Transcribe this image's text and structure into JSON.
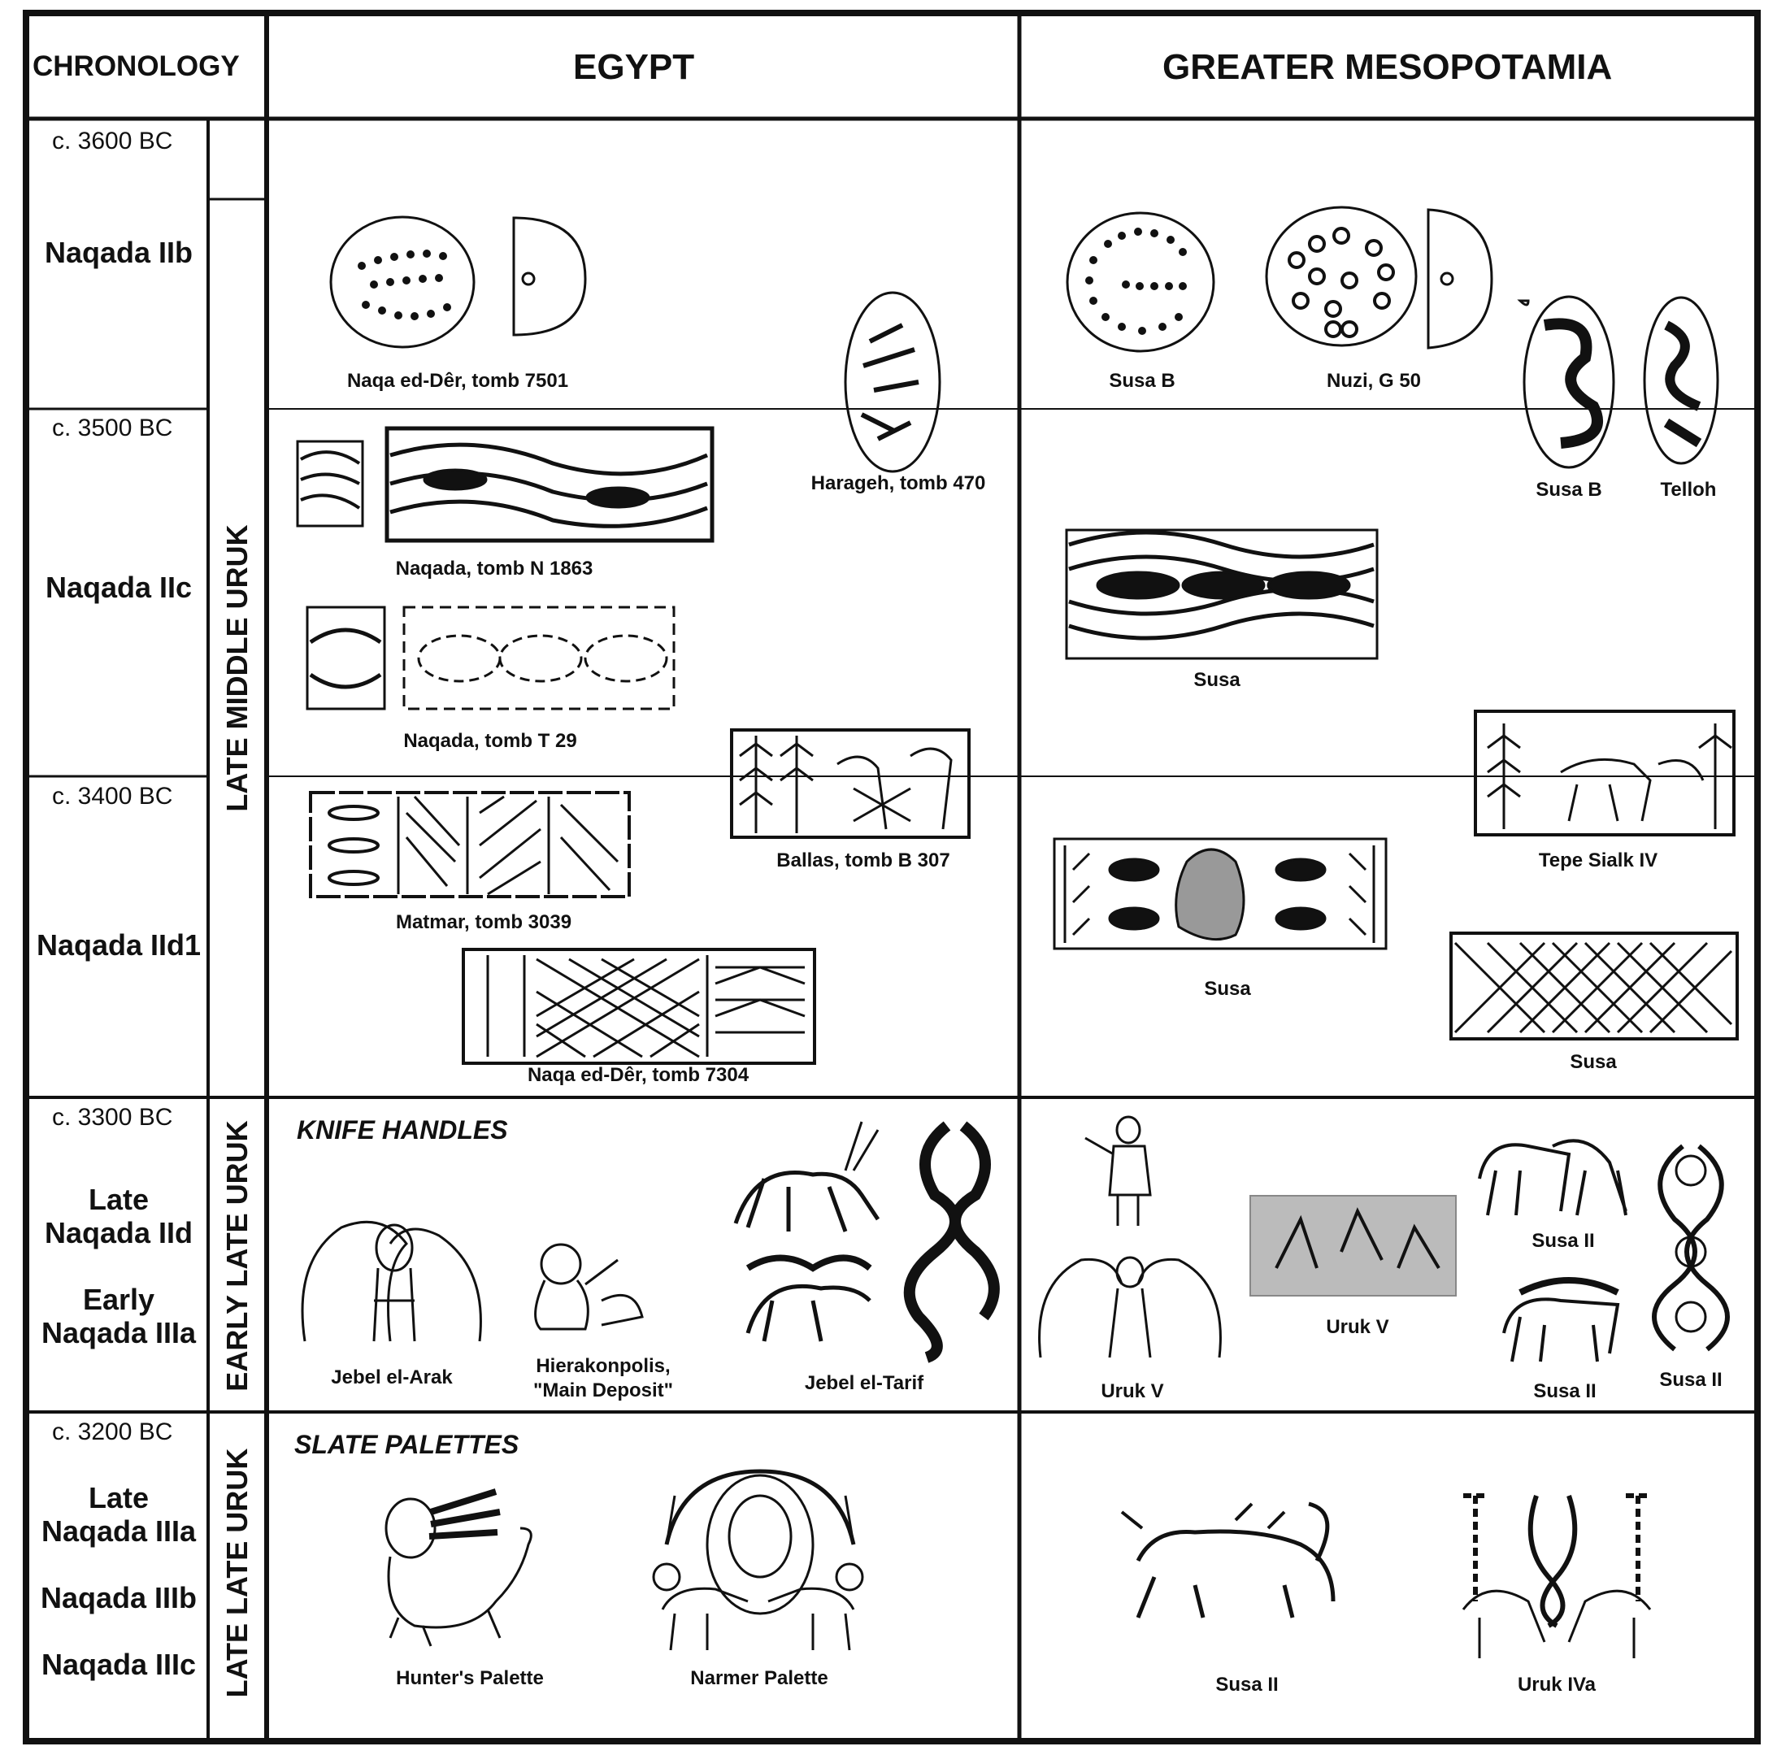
{
  "headers": {
    "chronology": "CHRONOLOGY",
    "egypt": "EGYPT",
    "mesopotamia": "GREATER MESOPOTAMIA"
  },
  "dates": [
    "c. 3600 BC",
    "c. 3500 BC",
    "c. 3400 BC",
    "c. 3300 BC",
    "c. 3200 BC"
  ],
  "periods": {
    "p1": "Naqada IIb",
    "p2": "Naqada IIc",
    "p3": "Naqada IId1",
    "p4a": "Late Naqada IId",
    "p4b": "Early Naqada IIIa",
    "p5a": "Late Naqada IIIa",
    "p5b": "Naqada IIIb",
    "p5c": "Naqada IIIc"
  },
  "uruk_phases": {
    "late_middle": "LATE MIDDLE URUK",
    "early_late": "EARLY LATE URUK",
    "late_late": "LATE LATE URUK"
  },
  "sections": {
    "knife": "KNIFE HANDLES",
    "slate": "SLATE PALETTES"
  },
  "egypt_captions": {
    "naqa_7501": "Naqa ed-Dêr, tomb 7501",
    "harageh": "Harageh, tomb 470",
    "naqada_n1863": "Naqada, tomb N 1863",
    "naqada_t29": "Naqada, tomb T 29",
    "ballas": "Ballas, tomb B 307",
    "matmar": "Matmar, tomb 3039",
    "naqa_7304": "Naqa ed-Dêr, tomb 7304",
    "jebel_arak": "Jebel el-Arak",
    "hierakonpolis_1": "Hierakonpolis,",
    "hierakonpolis_2": "\"Main Deposit\"",
    "jebel_tarif": "Jebel el-Tarif",
    "hunters": "Hunter's Palette",
    "narmer": "Narmer Palette"
  },
  "meso_captions": {
    "susa_b_1": "Susa B",
    "nuzi": "Nuzi, G 50",
    "susa_b_2": "Susa B",
    "telloh": "Telloh",
    "susa_1": "Susa",
    "tepe": "Tepe Sialk IV",
    "susa_2": "Susa",
    "susa_3": "Susa",
    "uruk_v_1": "Uruk V",
    "uruk_v_2": "Uruk V",
    "susa_ii_1": "Susa II",
    "susa_ii_2": "Susa II",
    "susa_ii_3": "Susa II",
    "susa_ii_4": "Susa II",
    "uruk_iva": "Uruk IVa"
  }
}
